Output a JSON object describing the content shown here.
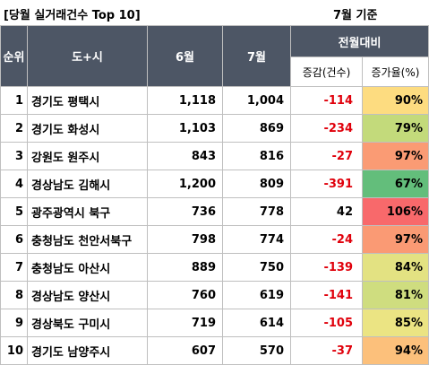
{
  "title": "[당월 실거래건수 Top 10]",
  "basis": "7월 기준",
  "headers": {
    "rank": "순위",
    "region": "도+시",
    "june": "6월",
    "july": "7월",
    "compare": "전월대비",
    "diff": "증감(건수)",
    "rate": "증가율(%)"
  },
  "rows": [
    {
      "no": "1",
      "region": "경기도 평택시",
      "june": "1,118",
      "july": "1,004",
      "diff": "-114",
      "rate": "90%",
      "color": "#fddc80"
    },
    {
      "no": "2",
      "region": "경기도 화성시",
      "june": "1,103",
      "july": "869",
      "diff": "-234",
      "rate": "79%",
      "color": "#c3da7b"
    },
    {
      "no": "3",
      "region": "강원도 원주시",
      "june": "843",
      "july": "816",
      "diff": "-27",
      "rate": "97%",
      "color": "#fa9b74"
    },
    {
      "no": "4",
      "region": "경상남도 김해시",
      "june": "1,200",
      "july": "809",
      "diff": "-391",
      "rate": "67%",
      "color": "#63be7b"
    },
    {
      "no": "5",
      "region": "광주광역시 북구",
      "june": "736",
      "july": "778",
      "diff": "42",
      "rate": "106%",
      "color": "#f8696b"
    },
    {
      "no": "6",
      "region": "충청남도 천안서북구",
      "june": "798",
      "july": "774",
      "diff": "-24",
      "rate": "97%",
      "color": "#fa9a74"
    },
    {
      "no": "7",
      "region": "충청남도 아산시",
      "june": "889",
      "july": "750",
      "diff": "-139",
      "rate": "84%",
      "color": "#e3e282"
    },
    {
      "no": "8",
      "region": "경상남도 양산시",
      "june": "760",
      "july": "619",
      "diff": "-141",
      "rate": "81%",
      "color": "#cfdd7f"
    },
    {
      "no": "9",
      "region": "경상북도 구미시",
      "june": "719",
      "july": "614",
      "diff": "-105",
      "rate": "85%",
      "color": "#ebe483"
    },
    {
      "no": "10",
      "region": "경기도 남양주시",
      "june": "607",
      "july": "570",
      "diff": "-37",
      "rate": "94%",
      "color": "#fcc07b"
    }
  ]
}
